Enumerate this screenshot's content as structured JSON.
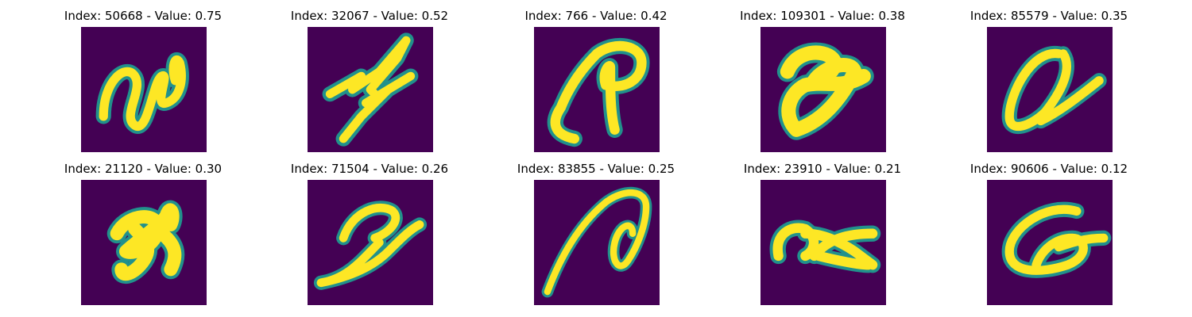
{
  "panels": [
    {
      "title": "Index: 50668 - Value: 0.75",
      "glyph": "glyph-scribble-n"
    },
    {
      "title": "Index: 32067 - Value: 0.52",
      "glyph": "glyph-scribble-zigzag"
    },
    {
      "title": "Index: 766 - Value: 0.42",
      "glyph": "glyph-scribble-p"
    },
    {
      "title": "Index: 109301 - Value: 0.38",
      "glyph": "glyph-scribble-blob"
    },
    {
      "title": "Index: 85579 - Value: 0.35",
      "glyph": "glyph-scribble-loop"
    },
    {
      "title": "Index: 21120 - Value: 0.30",
      "glyph": "glyph-scribble-h"
    },
    {
      "title": "Index: 71504 - Value: 0.26",
      "glyph": "glyph-scribble-hook"
    },
    {
      "title": "Index: 83855 - Value: 0.25",
      "glyph": "glyph-scribble-arc"
    },
    {
      "title": "Index: 23910 - Value: 0.21",
      "glyph": "glyph-scribble-x"
    },
    {
      "title": "Index: 90606 - Value: 0.12",
      "glyph": "glyph-scribble-oval"
    }
  ],
  "colors": {
    "background": "#440154",
    "stroke": "#fde725",
    "edge": "#21918c"
  }
}
